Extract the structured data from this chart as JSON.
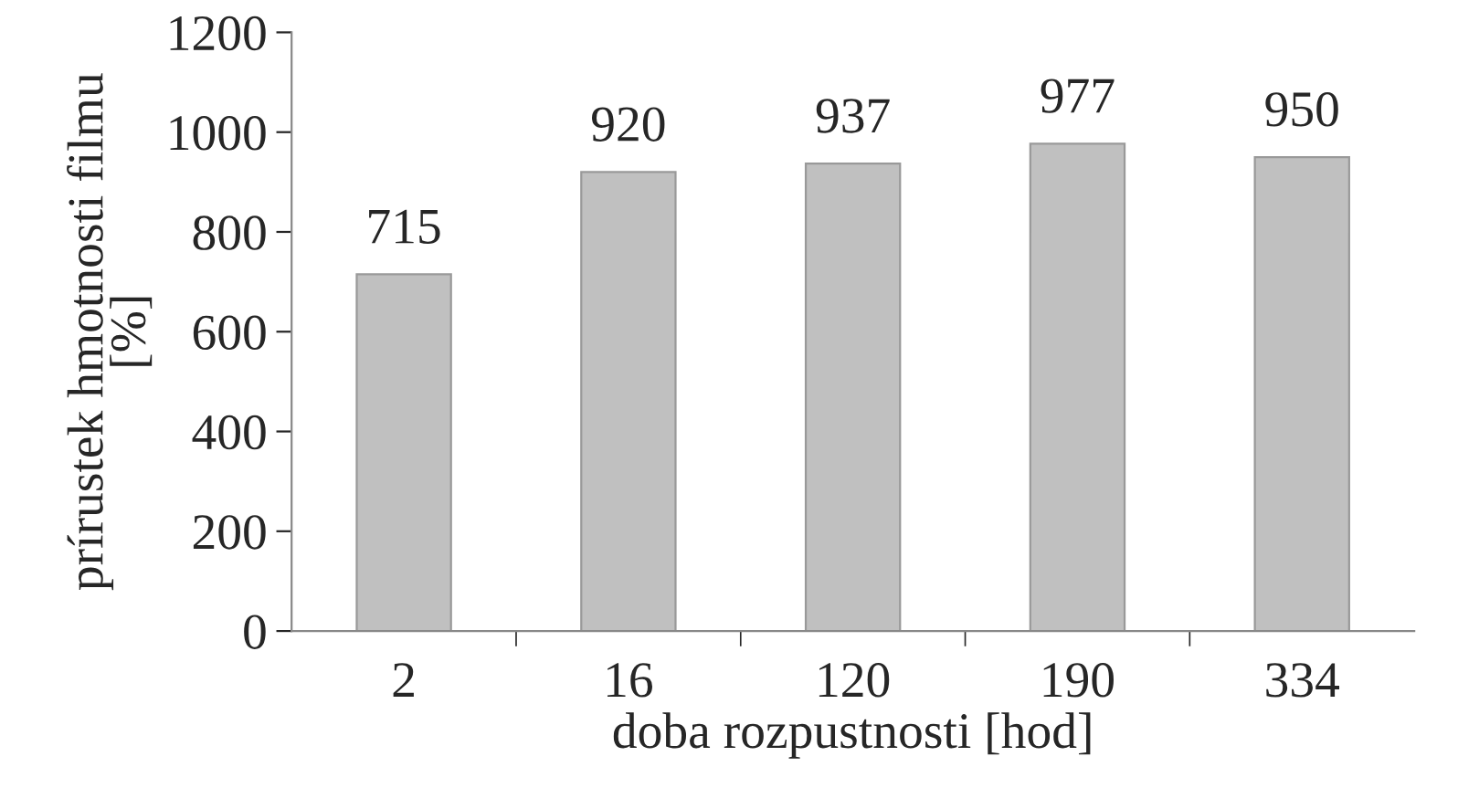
{
  "chart_data": {
    "type": "bar",
    "xlabel": "doba rozpustnosti [hod]",
    "ylabel": "prírustek hmotnosti filmu\n[%]",
    "categories": [
      "2",
      "16",
      "120",
      "190",
      "334"
    ],
    "values": [
      715,
      920,
      937,
      977,
      950
    ],
    "color": "#c0c0c0",
    "ylim": [
      0,
      1200
    ],
    "yticks": [
      0,
      200,
      400,
      600,
      800,
      1000,
      1200
    ],
    "data_labels": true,
    "grid": false
  }
}
